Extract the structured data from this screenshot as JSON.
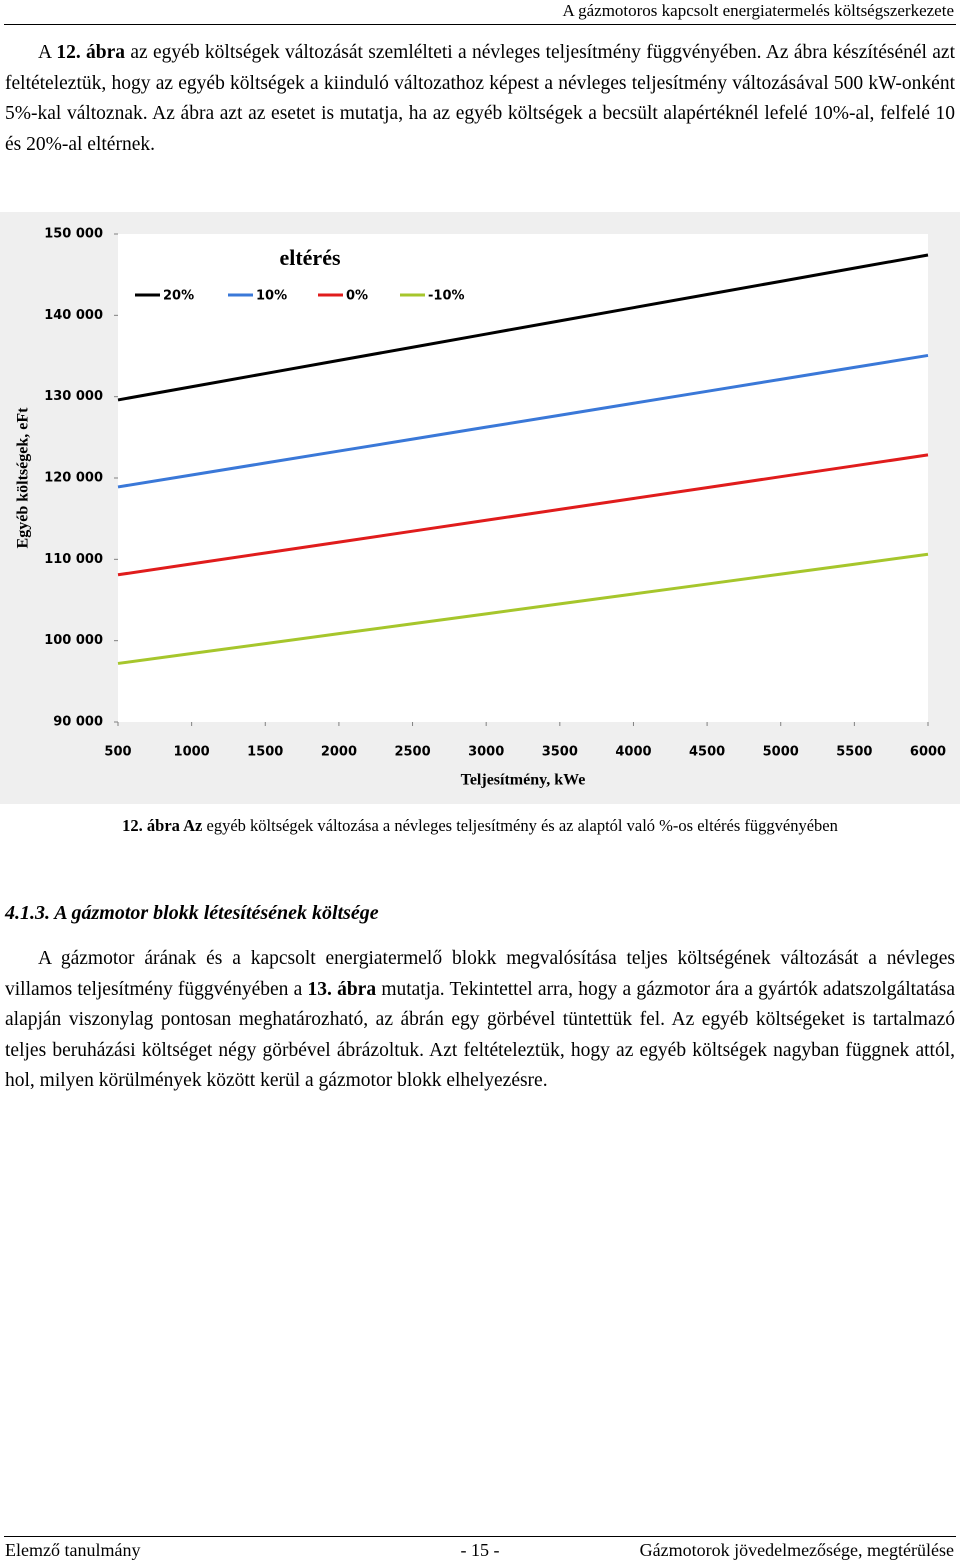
{
  "header": {
    "title": "A gázmotoros kapcsolt energiatermelés költségszerkezete"
  },
  "paragraph1": [
    "A ",
    "12. ábra",
    " az egyéb költségek változását szemlélteti a névleges teljesítmény függvényében. Az ábra készítésénél azt feltételeztük, hogy az egyéb költségek a kiinduló változathoz képest a névleges teljesítmény változásával 500 kW-onként 5%-kal változnak. Az ábra azt az esetet is mutatja, ha az egyéb költségek a becsült alapértéknél lefelé 10%-al, felfelé 10 és 20%-al eltérnek."
  ],
  "chart_data": {
    "type": "line",
    "legend_title": "eltérés",
    "x_label": "Teljesítmény, kWe",
    "y_label": "Egyéb költségek, eFt",
    "x": [
      500,
      1000,
      1500,
      2000,
      2500,
      3000,
      3500,
      4000,
      4500,
      5000,
      5500,
      6000
    ],
    "series": [
      {
        "name": "20%",
        "color": "#000000",
        "values": [
          129600,
          131220,
          132840,
          134460,
          136080,
          137700,
          139320,
          140940,
          142560,
          144180,
          145800,
          147420
        ]
      },
      {
        "name": "10%",
        "color": "#3a78d8",
        "values": [
          118900,
          120370,
          121840,
          123310,
          124780,
          126250,
          127720,
          129190,
          130660,
          132130,
          133600,
          135070
        ]
      },
      {
        "name": "0%",
        "color": "#e01c1c",
        "values": [
          108100,
          109440,
          110780,
          112120,
          113460,
          114800,
          116140,
          117480,
          118820,
          120160,
          121500,
          122840
        ]
      },
      {
        "name": "-10%",
        "color": "#a6c62c",
        "values": [
          97200,
          98420,
          99640,
          100860,
          102080,
          103300,
          104520,
          105740,
          106960,
          108180,
          109400,
          110620
        ]
      }
    ],
    "xlim": [
      500,
      6000
    ],
    "xticks": [
      500,
      1000,
      1500,
      2000,
      2500,
      3000,
      3500,
      4000,
      4500,
      5000,
      5500,
      6000
    ],
    "ylim": [
      90000,
      150000
    ],
    "yticks": [
      {
        "value": 90000,
        "label": "90 000"
      },
      {
        "value": 100000,
        "label": "100 000"
      },
      {
        "value": 110000,
        "label": "110 000"
      },
      {
        "value": 120000,
        "label": "120 000"
      },
      {
        "value": 130000,
        "label": "130 000"
      },
      {
        "value": 140000,
        "label": "140 000"
      },
      {
        "value": 150000,
        "label": "150 000"
      }
    ],
    "grid": false
  },
  "caption": [
    "12. ábra Az",
    " egyéb költségek változása a névleges teljesítmény és az alaptól való %-os eltérés függvényében"
  ],
  "section": {
    "title": "4.1.3. A gázmotor blokk létesítésének költsége"
  },
  "paragraph2": [
    "A gázmotor árának és a kapcsolt energiatermelő blokk megvalósítása teljes költségének változását a névleges villamos teljesítmény függvényében a ",
    "13. ábra",
    " mutatja. Tekintettel arra, hogy a gázmotor ára a gyártók adatszolgáltatása alapján viszonylag pontosan meghatározható, az ábrán egy görbével tüntettük fel. Az egyéb költségeket is tartalmazó teljes beruházási költséget négy görbével ábrázoltuk. Azt feltételeztük, hogy az egyéb költségek nagyban függnek attól, hol, milyen körülmények között kerül a gázmotor blokk elhelyezésre."
  ],
  "footer": {
    "left": "Elemző tanulmány",
    "center": "- 15 -",
    "right": "Gázmotorok jövedelmezősége, megtérülése"
  }
}
